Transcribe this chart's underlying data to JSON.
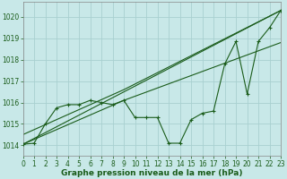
{
  "xlabel": "Graphe pression niveau de la mer (hPa)",
  "bg_color": "#c8e8e8",
  "grid_color": "#a8d0d0",
  "line_color": "#1a5c1a",
  "xlim": [
    0,
    23
  ],
  "ylim": [
    1013.5,
    1020.7
  ],
  "yticks": [
    1014,
    1015,
    1016,
    1017,
    1018,
    1019,
    1020
  ],
  "xticks": [
    0,
    1,
    2,
    3,
    4,
    5,
    6,
    7,
    8,
    9,
    10,
    11,
    12,
    13,
    14,
    15,
    16,
    17,
    18,
    19,
    20,
    21,
    22,
    23
  ],
  "series_main_x": [
    0,
    1,
    2,
    3,
    4,
    5,
    6,
    7,
    8,
    9,
    10,
    11,
    12,
    13,
    14,
    15,
    16,
    17,
    18,
    19,
    20,
    21,
    22,
    23
  ],
  "series_main_y": [
    1014.05,
    1014.1,
    1015.0,
    1015.75,
    1015.9,
    1015.9,
    1016.1,
    1016.0,
    1015.9,
    1016.1,
    1015.3,
    1015.3,
    1015.3,
    1014.1,
    1014.1,
    1015.2,
    1015.5,
    1015.6,
    1017.8,
    1018.85,
    1016.4,
    1018.85,
    1019.5,
    1020.3
  ],
  "ref_lines": [
    {
      "x": [
        0,
        23
      ],
      "y": [
        1014.05,
        1020.3
      ]
    },
    {
      "x": [
        0,
        9,
        23
      ],
      "y": [
        1014.5,
        1016.6,
        1020.3
      ]
    },
    {
      "x": [
        0,
        9,
        23
      ],
      "y": [
        1014.05,
        1016.1,
        1018.8
      ]
    }
  ]
}
